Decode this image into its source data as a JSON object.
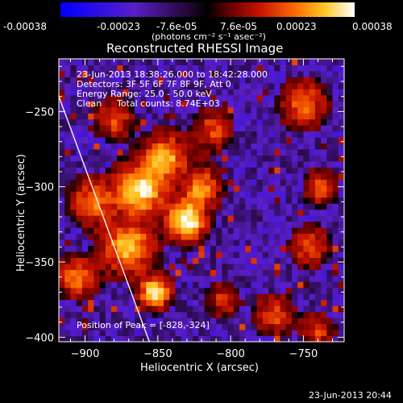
{
  "colorbar": {
    "tick_labels": [
      "-0.00038",
      "-0.00023",
      "-7.6e-05",
      "7.6e-05",
      "0.00023",
      "0.00038"
    ],
    "unit_label": "(photons cm⁻² s⁻¹ asec⁻²)",
    "range": [
      -0.00038,
      0.00038
    ]
  },
  "header": {
    "title": "Reconstructed RHESSI Image"
  },
  "info": {
    "time_range": "23-Jun-2013 18:38:26.000 to 18:42:28.000",
    "detectors": "Detectors: 3F 5F 6F 7F 8F 9F, Att 0",
    "energy": "Energy Range: 25.0 - 50.0 keV",
    "clean": "Clean",
    "total_counts": "Total counts: 8.74E+03",
    "peak": "Position of Peak = [-828,-324]"
  },
  "footer": {
    "timestamp": "23-Jun-2013 20:44"
  },
  "chart_data": {
    "type": "heatmap",
    "title": "Reconstructed RHESSI Image",
    "xlabel": "Heliocentric X (arcsec)",
    "ylabel": "Heliocentric Y (arcsec)",
    "xlim": [
      -918,
      -722
    ],
    "ylim": [
      -403,
      -215
    ],
    "x_ticks": [
      -900,
      -850,
      -800,
      -750
    ],
    "y_ticks": [
      -250,
      -300,
      -350,
      -400
    ],
    "peak": [
      -828,
      -324
    ],
    "limb_line": [
      [
        -918,
        -240
      ],
      [
        -852,
        -413
      ]
    ],
    "hot_spots": [
      {
        "x": -830,
        "y": -322,
        "strength": 1.0,
        "radius": 12
      },
      {
        "x": -862,
        "y": -302,
        "strength": 0.85,
        "radius": 16
      },
      {
        "x": -845,
        "y": -280,
        "strength": 0.7,
        "radius": 14
      },
      {
        "x": -870,
        "y": -340,
        "strength": 0.75,
        "radius": 16
      },
      {
        "x": -852,
        "y": -370,
        "strength": 0.85,
        "radius": 10
      },
      {
        "x": -905,
        "y": -360,
        "strength": 0.6,
        "radius": 12
      },
      {
        "x": -895,
        "y": -310,
        "strength": 0.55,
        "radius": 14
      },
      {
        "x": -820,
        "y": -300,
        "strength": 0.6,
        "radius": 12
      },
      {
        "x": -812,
        "y": -262,
        "strength": 0.45,
        "radius": 12
      },
      {
        "x": -880,
        "y": -255,
        "strength": 0.45,
        "radius": 12
      },
      {
        "x": -750,
        "y": -245,
        "strength": 0.55,
        "radius": 14
      },
      {
        "x": -738,
        "y": -300,
        "strength": 0.5,
        "radius": 10
      },
      {
        "x": -745,
        "y": -340,
        "strength": 0.45,
        "radius": 12
      },
      {
        "x": -770,
        "y": -385,
        "strength": 0.45,
        "radius": 12
      },
      {
        "x": -805,
        "y": -375,
        "strength": 0.4,
        "radius": 10
      },
      {
        "x": -740,
        "y": -395,
        "strength": 0.4,
        "radius": 10
      }
    ]
  }
}
